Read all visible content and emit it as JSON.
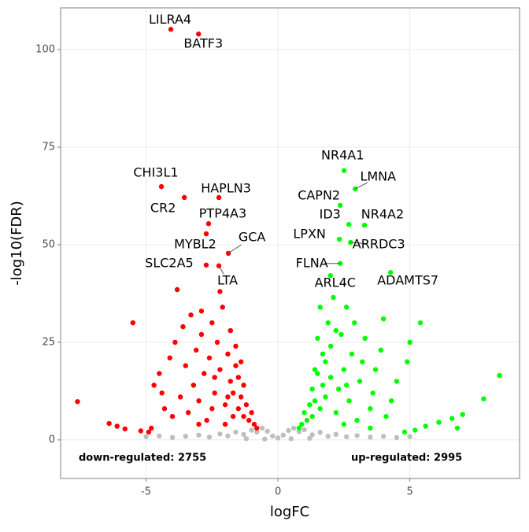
{
  "chart_data": {
    "type": "scatter",
    "x_label": "logFC",
    "y_label": "-log10(FDR)",
    "xlim": [
      -8.24,
      9.16
    ],
    "ylim": [
      -9.9,
      110.7
    ],
    "xticks": [
      -5,
      0,
      5
    ],
    "yticks": [
      0,
      25,
      50,
      75,
      100
    ],
    "grid": true,
    "annotations": [
      "down-regulated: 2755",
      "up-regulated: 2995"
    ],
    "series": [
      {
        "color": "#bebebe",
        "x": [
          -5.0,
          -4.5,
          -4.0,
          -3.5,
          -3.0,
          -2.6,
          -2.2,
          -1.9,
          -1.6,
          -1.3,
          -1.0,
          -0.8,
          -0.6,
          -0.4,
          -0.2,
          0.0,
          0.2,
          0.4,
          0.6,
          0.8,
          1.0,
          1.3,
          1.6,
          1.9,
          2.2,
          2.6,
          3.0,
          3.5,
          4.0,
          4.5,
          5.0,
          -1.2,
          1.2,
          -0.5,
          0.5
        ],
        "values": [
          0.8,
          1.0,
          0.6,
          0.9,
          1.2,
          0.7,
          1.5,
          1.0,
          2.0,
          1.4,
          2.5,
          2.0,
          3.0,
          2.2,
          1.0,
          0.5,
          1.2,
          2.4,
          3.0,
          2.1,
          2.6,
          1.3,
          1.9,
          0.9,
          1.4,
          0.8,
          1.1,
          0.7,
          0.9,
          0.6,
          0.8,
          0.3,
          0.4,
          0.2,
          0.3
        ],
        "labels": [
          null,
          null,
          null,
          null,
          null,
          null,
          null,
          null,
          null,
          null,
          null,
          null,
          null,
          null,
          null,
          null,
          null,
          null,
          null,
          null,
          null,
          null,
          null,
          null,
          null,
          null,
          null,
          null,
          null,
          null,
          null,
          null,
          null,
          null,
          null
        ]
      },
      {
        "color": "#ff0000",
        "x": [
          -7.6,
          -6.4,
          -6.1,
          -5.8,
          -5.5,
          -5.2,
          -4.9,
          -4.7,
          -4.5,
          -4.4,
          -4.3,
          -4.1,
          -4.0,
          -3.82,
          -3.9,
          -3.7,
          -3.6,
          -3.5,
          -3.4,
          -3.3,
          -3.2,
          -3.1,
          -3.0,
          -2.9,
          -2.8,
          -2.7,
          -2.6,
          -2.5,
          -2.4,
          -2.3,
          -2.2,
          -2.1,
          -2.0,
          -1.9,
          -1.8,
          -1.8,
          -1.7,
          -1.6,
          -1.5,
          -1.5,
          -1.4,
          -1.3,
          -1.3,
          -1.2,
          -1.1,
          -1.0,
          -0.9,
          -0.8,
          -2.5,
          -3.0,
          -2.0,
          -1.7,
          -2.2,
          -2.9,
          -4.8,
          -1.6,
          -1.9,
          -2.4,
          -1.4,
          -4.06,
          -3.01,
          -4.42,
          -3.55,
          -2.24,
          -2.63,
          -2.72,
          -1.88,
          -2.72,
          -2.24
        ],
        "values": [
          9.8,
          4.2,
          3.5,
          2.8,
          30,
          2.3,
          2.0,
          14,
          17,
          12,
          8,
          21,
          6,
          38.5,
          25,
          11,
          29,
          19,
          7,
          32,
          14,
          23,
          10,
          27,
          17,
          5,
          21,
          30,
          12,
          25,
          18,
          34,
          9,
          22,
          28,
          15,
          12,
          19,
          8,
          16,
          11,
          6,
          14,
          9,
          5,
          7,
          4,
          3,
          8,
          4,
          4,
          6,
          38,
          33,
          3,
          24,
          11,
          16,
          20,
          105.2,
          104.0,
          64.9,
          62.1,
          62.1,
          55.4,
          52.8,
          47.8,
          44.8,
          44.6
        ],
        "labels": [
          null,
          null,
          null,
          null,
          null,
          null,
          null,
          null,
          null,
          null,
          null,
          null,
          null,
          null,
          null,
          null,
          null,
          null,
          null,
          null,
          null,
          null,
          null,
          null,
          null,
          null,
          null,
          null,
          null,
          null,
          null,
          null,
          null,
          null,
          null,
          null,
          null,
          null,
          null,
          null,
          null,
          null,
          null,
          null,
          null,
          null,
          null,
          null,
          null,
          null,
          null,
          null,
          null,
          null,
          null,
          null,
          null,
          null,
          null,
          "LILRA4",
          "BATF3",
          "CHI3L1",
          "CR2",
          "HAPLN3",
          "PTP4A3",
          "MYBL2",
          "GCA",
          "SLC2A5",
          "LTA"
        ]
      },
      {
        "color": "#00ff00",
        "x": [
          8.4,
          7.8,
          7.0,
          6.6,
          6.1,
          5.6,
          5.2,
          4.8,
          5.4,
          5.0,
          4.9,
          4.5,
          4.3,
          4.1,
          3.9,
          3.7,
          3.6,
          3.5,
          3.3,
          3.2,
          3.1,
          3.0,
          2.9,
          2.8,
          2.7,
          2.6,
          2.5,
          2.4,
          2.3,
          2.2,
          2.1,
          2.0,
          2.0,
          1.9,
          1.8,
          1.8,
          1.7,
          1.6,
          1.5,
          1.5,
          1.4,
          1.3,
          1.3,
          1.2,
          1.1,
          1.0,
          0.9,
          0.8,
          2.5,
          3.5,
          1.6,
          4.0,
          6.8,
          1.7,
          2.2,
          1.4,
          2.6,
          2.51,
          2.93,
          2.36,
          2.69,
          3.28,
          2.33,
          2.75,
          2.36,
          1.99,
          4.27
        ],
        "values": [
          16.5,
          10.5,
          6.5,
          5.5,
          4.5,
          3.5,
          2.5,
          2.0,
          30,
          25,
          20,
          15,
          10,
          6,
          23,
          18,
          12,
          8,
          26,
          20,
          15,
          5,
          30,
          22,
          10,
          34,
          18,
          27,
          13,
          7,
          36.5,
          24,
          16,
          30,
          11,
          20,
          14,
          8,
          26,
          17,
          10,
          6,
          13,
          9,
          5,
          7,
          4,
          3,
          4,
          3,
          34,
          31,
          3,
          22,
          28,
          18,
          14,
          69.0,
          64.3,
          60.1,
          55.2,
          55.0,
          51.4,
          50.6,
          45.2,
          42.1,
          42.9
        ],
        "labels": [
          null,
          null,
          null,
          null,
          null,
          null,
          null,
          null,
          null,
          null,
          null,
          null,
          null,
          null,
          null,
          null,
          null,
          null,
          null,
          null,
          null,
          null,
          null,
          null,
          null,
          null,
          null,
          null,
          null,
          null,
          null,
          null,
          null,
          null,
          null,
          null,
          null,
          null,
          null,
          null,
          null,
          null,
          null,
          null,
          null,
          null,
          null,
          null,
          null,
          null,
          null,
          null,
          null,
          null,
          null,
          null,
          null,
          "NR4A1",
          "LMNA",
          "CAPN2",
          "ID3",
          "NR4A2",
          "LPXN",
          "ARRDC3",
          "FLNA",
          "ARL4C",
          "ADAMTS7"
        ]
      }
    ]
  }
}
